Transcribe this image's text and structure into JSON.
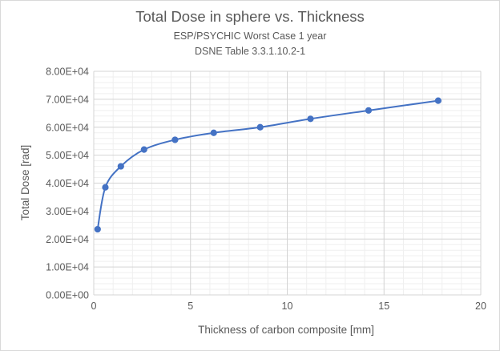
{
  "chart_data": {
    "type": "line",
    "title": "Total Dose in sphere vs. Thickness",
    "subtitles": [
      "ESP/PSYCHIC Worst Case 1 year",
      "DSNE Table 3.3.1.10.2-1"
    ],
    "xlabel": "Thickness of carbon composite [mm]",
    "ylabel": "Total Dose [rad]",
    "xlim": [
      0,
      20
    ],
    "ylim": [
      0,
      80000
    ],
    "x_ticks": [
      "0",
      "5",
      "10",
      "15",
      "20"
    ],
    "y_ticks": [
      "0.00E+00",
      "1.00E+04",
      "2.00E+04",
      "3.00E+04",
      "4.00E+04",
      "5.00E+04",
      "6.00E+04",
      "7.00E+04",
      "8.00E+04"
    ],
    "x_tick_values": [
      0,
      5,
      10,
      15,
      20
    ],
    "y_tick_values": [
      0,
      10000,
      20000,
      30000,
      40000,
      50000,
      60000,
      70000,
      80000
    ],
    "grid": true,
    "legend": "none",
    "series": [
      {
        "x": [
          0.2,
          0.6,
          1.4,
          2.6,
          4.2,
          6.2,
          8.6,
          11.2,
          14.2,
          17.8
        ],
        "y": [
          23500,
          38500,
          46000,
          52000,
          55500,
          58000,
          60000,
          63000,
          66000,
          69500
        ],
        "color": "#4472c4"
      }
    ]
  }
}
